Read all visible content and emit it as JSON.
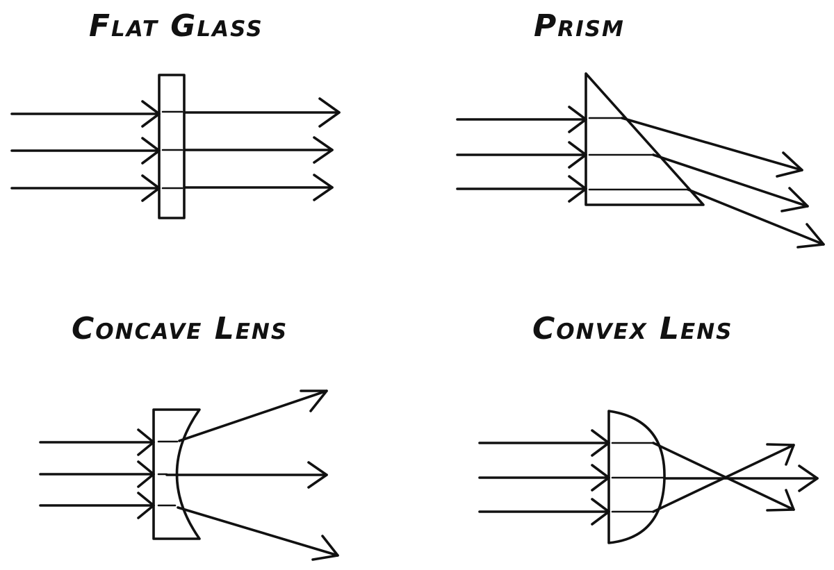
{
  "panels": {
    "flat_glass": {
      "title": "Flat Glass"
    },
    "prism": {
      "title": "Prism"
    },
    "concave_lens": {
      "title": "Concave Lens"
    },
    "convex_lens": {
      "title": "Convex Lens"
    }
  },
  "colors": {
    "ink": "#111111",
    "background": "#ffffff"
  }
}
